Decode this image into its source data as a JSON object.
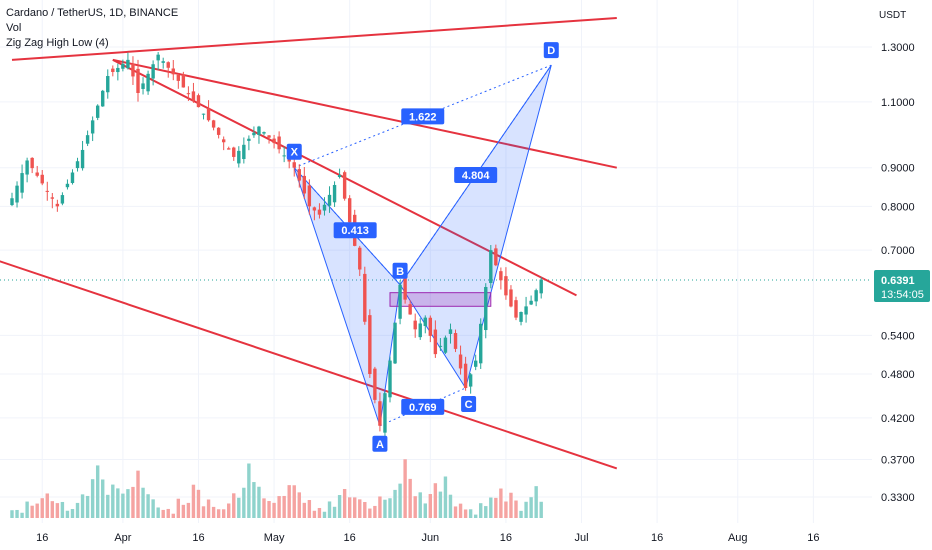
{
  "legend": {
    "symbol": "Cardano / TetherUS, 1D, BINANCE",
    "vol": "Vol",
    "indicator": "Zig Zag High Low (4)"
  },
  "axis": {
    "currency": "USDT",
    "y_ticks": [
      "1.3000",
      "1.1000",
      "0.9000",
      "0.8000",
      "0.7000",
      "0.5400",
      "0.4800",
      "0.4200",
      "0.3700",
      "0.3300"
    ],
    "x_ticks": [
      "16",
      "Apr",
      "16",
      "May",
      "16",
      "Jun",
      "16",
      "Jul",
      "16",
      "Aug",
      "16"
    ]
  },
  "price_label": {
    "value": "0.6391",
    "countdown": "13:54:05"
  },
  "colors": {
    "up": "#26a69a",
    "down": "#ef5350",
    "vol_up": "#8fd3cc",
    "vol_down": "#f5a3a1",
    "trend": "#e5333f",
    "pattern_blue": "#2962ff",
    "zigzag_orange": "#f7931a"
  },
  "chart_data": {
    "type": "candlestick",
    "title": "Cardano / TetherUS, 1D, BINANCE",
    "y_scale": "log",
    "ylabel": "USDT",
    "x_range_dates": [
      "2021-03-10",
      "2021-08-26"
    ],
    "y_range": [
      0.3,
      1.45
    ],
    "price_path": [
      [
        "2021-03-10",
        0.82
      ],
      [
        "2021-03-13",
        0.92
      ],
      [
        "2021-03-19",
        0.8
      ],
      [
        "2021-03-24",
        0.95
      ],
      [
        "2021-03-29",
        1.19
      ],
      [
        "2021-04-02",
        1.25
      ],
      [
        "2021-04-04",
        1.13
      ],
      [
        "2021-04-08",
        1.27
      ],
      [
        "2021-04-18",
        1.04
      ],
      [
        "2021-04-23",
        0.93
      ],
      [
        "2021-04-28",
        1.02
      ],
      [
        "2021-05-01",
        0.97
      ],
      [
        "2021-05-05",
        0.9
      ],
      [
        "2021-05-08",
        0.8
      ],
      [
        "2021-05-10",
        0.78
      ],
      [
        "2021-05-14",
        0.88
      ],
      [
        "2021-05-18",
        0.66
      ],
      [
        "2021-05-20",
        0.48
      ],
      [
        "2021-05-22",
        0.41
      ],
      [
        "2021-05-24",
        0.5
      ],
      [
        "2021-05-26",
        0.63
      ],
      [
        "2021-05-29",
        0.55
      ],
      [
        "2021-05-31",
        0.57
      ],
      [
        "2021-06-02",
        0.51
      ],
      [
        "2021-06-05",
        0.55
      ],
      [
        "2021-06-08",
        0.46
      ],
      [
        "2021-06-10",
        0.5
      ],
      [
        "2021-06-13",
        0.7
      ],
      [
        "2021-06-16",
        0.61
      ],
      [
        "2021-06-18",
        0.57
      ],
      [
        "2021-06-21",
        0.6
      ],
      [
        "2021-06-23",
        0.64
      ]
    ],
    "last_price": 0.6391,
    "harmonic_pattern": {
      "points": [
        {
          "label": "X",
          "date": "2021-05-05",
          "price": 0.9
        },
        {
          "label": "A",
          "date": "2021-05-22",
          "price": 0.41
        },
        {
          "label": "B",
          "date": "2021-05-26",
          "price": 0.63
        },
        {
          "label": "C",
          "date": "2021-06-08",
          "price": 0.46
        },
        {
          "label": "D",
          "date": "2021-06-25",
          "price": 1.23
        }
      ],
      "ratios": [
        {
          "between": "XA-B",
          "value": "0.413"
        },
        {
          "between": "AB-C",
          "value": "0.769"
        },
        {
          "between": "BC-D",
          "value": "4.804"
        },
        {
          "between": "XA-D",
          "value": "1.622"
        }
      ]
    },
    "trendlines": [
      {
        "from": [
          "2021-03-10",
          1.25
        ],
        "to": [
          "2021-07-08",
          1.42
        ]
      },
      {
        "from": [
          "2021-03-30",
          1.25
        ],
        "to": [
          "2021-07-08",
          0.9
        ]
      },
      {
        "from": [
          "2021-03-30",
          1.25
        ],
        "to": [
          "2021-06-30",
          0.61
        ]
      },
      {
        "from": [
          "2021-03-01",
          0.7
        ],
        "to": [
          "2021-07-08",
          0.36
        ]
      }
    ],
    "range_box": {
      "from": "2021-05-24",
      "to": "2021-06-13",
      "top": 0.615,
      "bottom": 0.59
    },
    "volume": {
      "relative_heights": [
        0.15,
        0.2,
        0.1,
        0.3,
        0.25,
        0.4,
        0.6,
        0.5,
        0.35,
        0.45,
        0.3,
        0.2,
        0.25,
        0.35,
        0.5,
        0.4,
        0.6,
        0.85,
        1.0,
        0.7,
        0.55,
        0.45,
        0.4,
        0.5,
        0.6,
        0.75,
        0.9,
        0.55,
        0.35,
        0.3
      ]
    }
  }
}
